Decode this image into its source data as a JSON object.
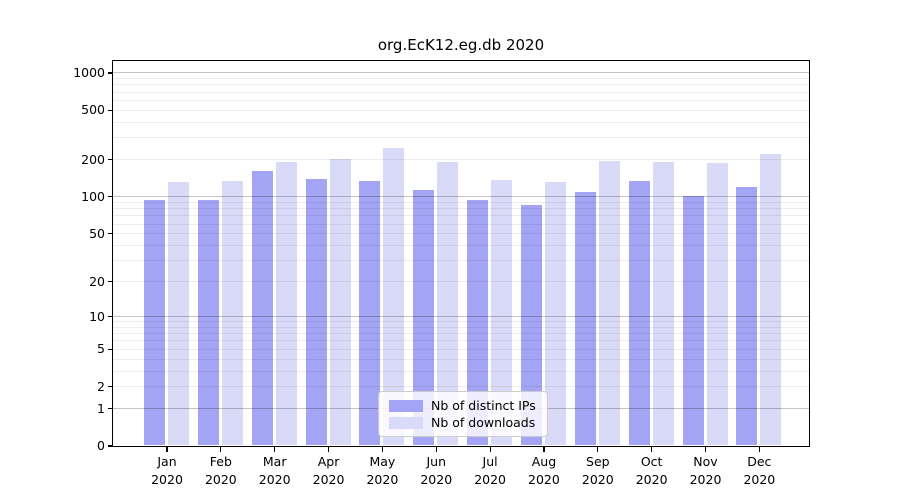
{
  "chart_data": {
    "type": "bar",
    "scale": "log1p",
    "title": "org.EcK12.eg.db 2020",
    "categories": [
      "Jan",
      "Feb",
      "Mar",
      "Apr",
      "May",
      "Jun",
      "Jul",
      "Aug",
      "Sep",
      "Oct",
      "Nov",
      "Dec"
    ],
    "x_tick_year": "2020",
    "series": [
      {
        "name": "Nb of distinct IPs",
        "color": "#a4a4f4",
        "values": [
          93,
          93,
          160,
          139,
          132,
          113,
          94,
          85,
          109,
          134,
          100,
          118
        ]
      },
      {
        "name": "Nb of downloads",
        "color": "#d9d9f8",
        "values": [
          131,
          133,
          189,
          202,
          245,
          191,
          135,
          131,
          192,
          191,
          185,
          218
        ]
      }
    ],
    "y_ticks": [
      0,
      1,
      2,
      5,
      10,
      20,
      50,
      100,
      200,
      500,
      1000
    ],
    "ylim": [
      0,
      1236
    ],
    "grid": {
      "on": true,
      "major_values": [
        1,
        10,
        100,
        1000
      ],
      "major_color": "#c3c3c3",
      "minor_color": "#ededed"
    },
    "legend": {
      "position": "inside-bottom-center",
      "entries": [
        "Nb of distinct IPs",
        "Nb of downloads"
      ]
    },
    "xlabel": "",
    "ylabel": ""
  }
}
